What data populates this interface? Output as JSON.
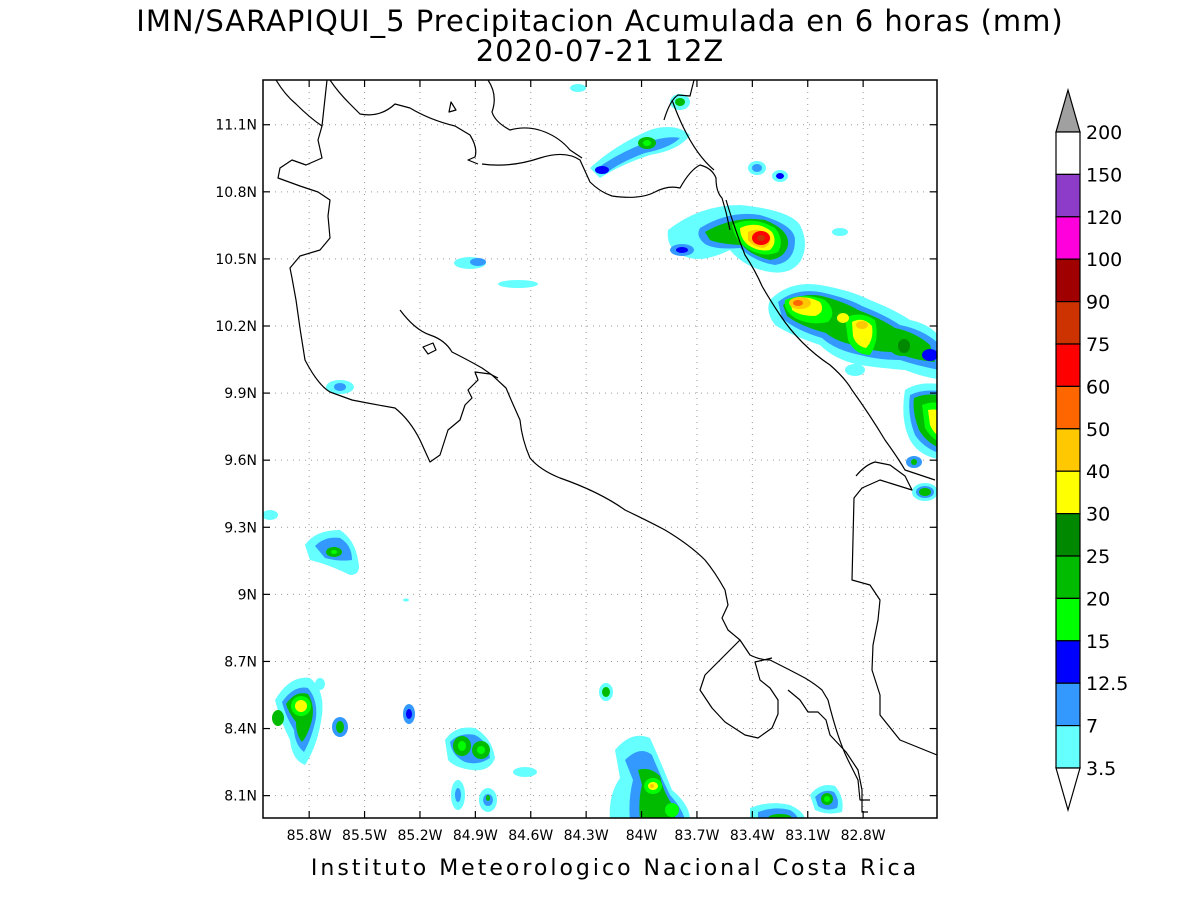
{
  "title": {
    "line1": "IMN/SARAPIQUI_5 Precipitacion Acumulada en 6 horas (mm)",
    "line2": "2020-07-21 12Z"
  },
  "footer": "Instituto Meteorologico Nacional Costa Rica",
  "map": {
    "lon_range": [
      -86.05,
      -82.4
    ],
    "lat_range": [
      8.0,
      11.3
    ],
    "lat_ticks": [
      "11.1N",
      "10.8N",
      "10.5N",
      "10.2N",
      "9.9N",
      "9.6N",
      "9.3N",
      "9N",
      "8.7N",
      "8.4N",
      "8.1N"
    ],
    "lon_ticks": [
      "85.8W",
      "85.5W",
      "85.2W",
      "84.9W",
      "84.6W",
      "84.3W",
      "84W",
      "83.7W",
      "83.4W",
      "83.1W",
      "82.8W"
    ],
    "grid": true
  },
  "colorbar": {
    "labels": [
      "200",
      "150",
      "120",
      "100",
      "90",
      "75",
      "60",
      "50",
      "40",
      "30",
      "25",
      "20",
      "15",
      "12.5",
      "7",
      "3.5"
    ],
    "colors": [
      "#ffffff",
      "#8c3cc8",
      "#ff00dc",
      "#a00000",
      "#cc3300",
      "#ff0000",
      "#ff6600",
      "#ffc800",
      "#ffff00",
      "#008800",
      "#00bb00",
      "#00ff00",
      "#0000ff",
      "#3399ff",
      "#66ffff"
    ],
    "over_color": "#a0a0a0",
    "under_color": "#ffffff"
  }
}
